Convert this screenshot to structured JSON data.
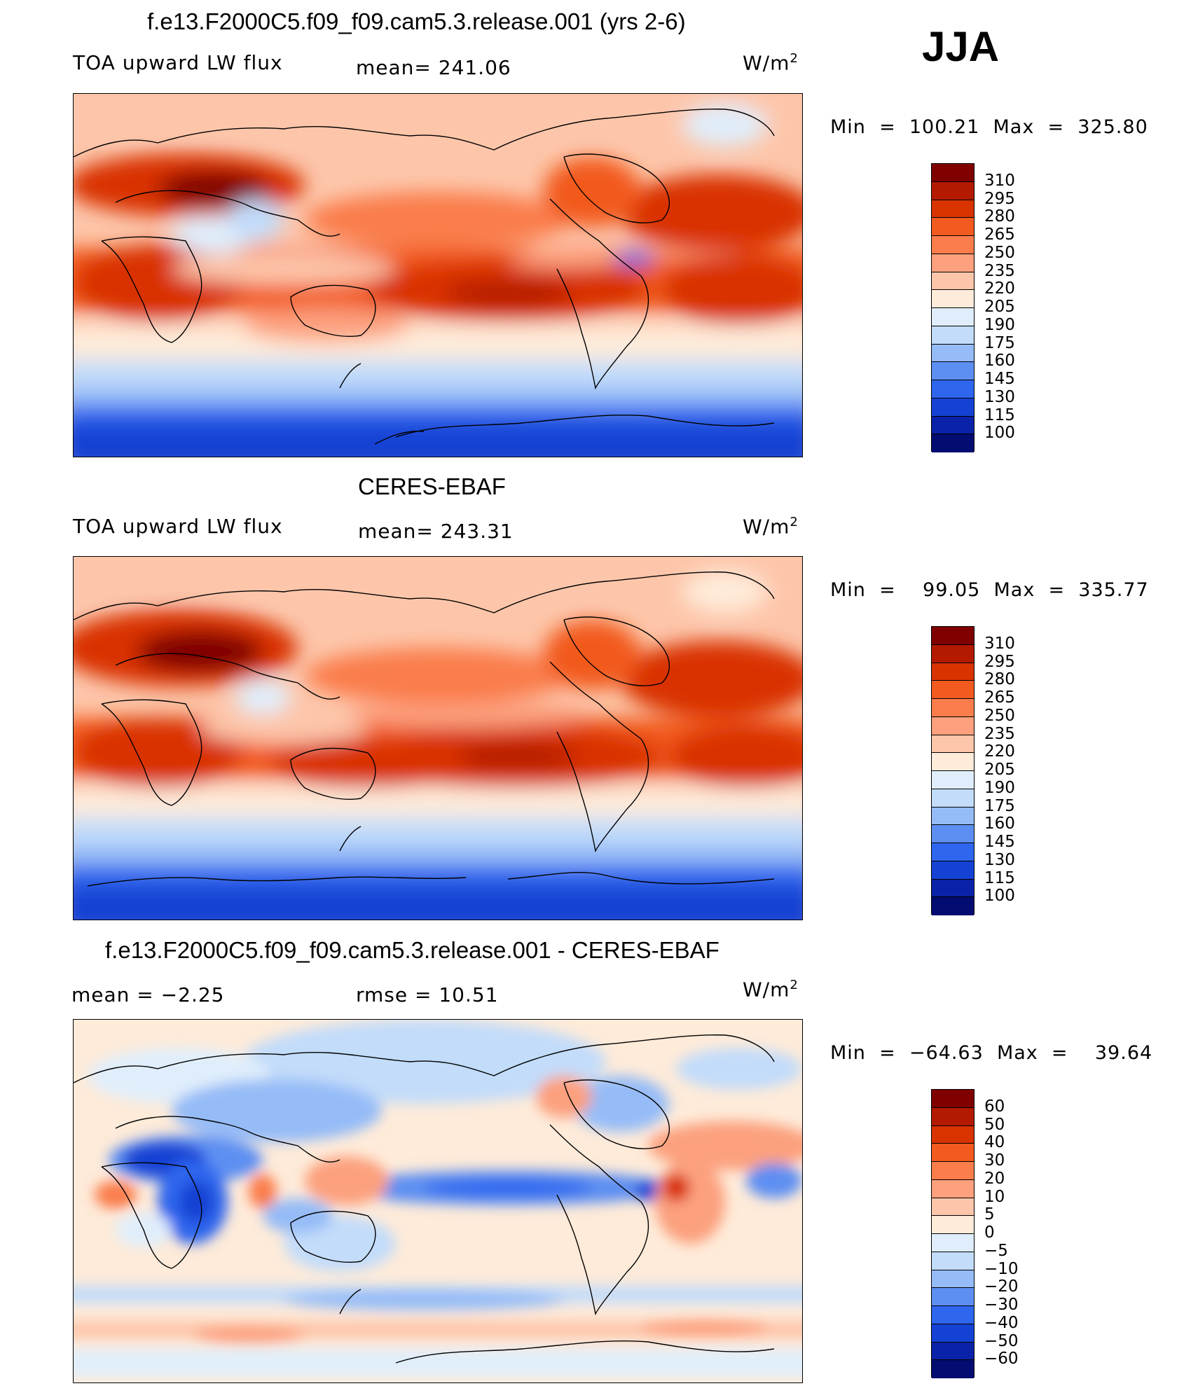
{
  "season": "JJA",
  "panel1": {
    "title": "f.e13.F2000C5.f09_f09.cam5.3.release.001 (yrs 2-6)",
    "variable": "TOA upward LW flux",
    "mean_label": "mean=  241.06",
    "units": "W/m",
    "units_sup": "2",
    "minmax": "Min  =  100.21  Max  =  325.80",
    "ticks": [
      "310",
      "295",
      "280",
      "265",
      "250",
      "235",
      "220",
      "205",
      "190",
      "175",
      "160",
      "145",
      "130",
      "115",
      "100"
    ]
  },
  "panel2": {
    "title": "CERES-EBAF",
    "variable": "TOA upward LW flux",
    "mean_label": "mean=  243.31",
    "units": "W/m",
    "units_sup": "2",
    "minmax": "Min  =    99.05  Max  =  335.77",
    "ticks": [
      "310",
      "295",
      "280",
      "265",
      "250",
      "235",
      "220",
      "205",
      "190",
      "175",
      "160",
      "145",
      "130",
      "115",
      "100"
    ]
  },
  "panel3": {
    "title": "f.e13.F2000C5.f09_f09.cam5.3.release.001 - CERES-EBAF",
    "mean_label": "mean  =     −2.25",
    "rmse_label": "rmse  =     10.51",
    "units": "W/m",
    "units_sup": "2",
    "minmax": "Min  =  −64.63  Max  =    39.64",
    "ticks": [
      "60",
      "50",
      "40",
      "30",
      "20",
      "10",
      "5",
      "0",
      "−5",
      "−10",
      "−20",
      "−30",
      "−40",
      "−50",
      "−60"
    ]
  },
  "colors": {
    "abs_scale": [
      "#800000",
      "#b31a00",
      "#d93300",
      "#f25a1f",
      "#fa7d4b",
      "#fca07e",
      "#fdc6aa",
      "#feebd9",
      "#e0eefb",
      "#c2dcfa",
      "#95bcf7",
      "#5d8ff2",
      "#2e66ee",
      "#1442d4",
      "#0a22a8",
      "#030c70"
    ],
    "diff_scale": [
      "#800000",
      "#b31a00",
      "#d93300",
      "#f25a1f",
      "#fa7d4b",
      "#fca07e",
      "#fdc6aa",
      "#feebd9",
      "#e0eefb",
      "#c2dcfa",
      "#95bcf7",
      "#5d8ff2",
      "#2e66ee",
      "#1442d4",
      "#0a22a8",
      "#030c70"
    ]
  }
}
